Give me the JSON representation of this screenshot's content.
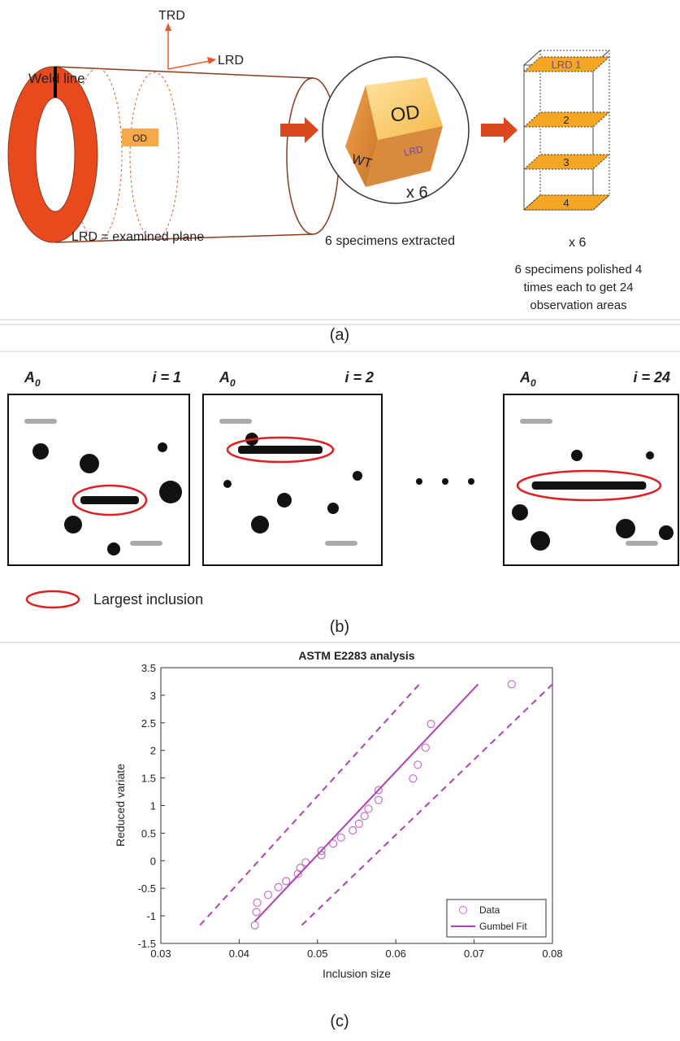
{
  "panel_a": {
    "axis_trd": "TRD",
    "axis_lrd": "LRD",
    "weld_line": "Weld line",
    "pipe_od": "OD",
    "caption_pipe": "LRD = examined plane",
    "cube_od": "OD",
    "cube_wt": "WT",
    "cube_lrd": "LRD",
    "cube_count": "x 6",
    "caption_specimens": "6 specimens extracted",
    "planes": [
      "LRD 1",
      "2",
      "3",
      "4"
    ],
    "stack_count": "x 6",
    "caption_polished": [
      "6 specimens polished 4",
      "times each to get 24",
      "observation areas"
    ],
    "label": "(a)"
  },
  "panel_b": {
    "images": [
      {
        "symbol": "A",
        "subscript": "0",
        "index": "i = 1"
      },
      {
        "symbol": "A",
        "subscript": "0",
        "index": "i = 2"
      },
      {
        "symbol": "A",
        "subscript": "0",
        "index": "i = 24"
      }
    ],
    "legend": "Largest inclusion",
    "label": "(b)"
  },
  "chart_data": {
    "type": "scatter",
    "title": "ASTM E2283 analysis",
    "x_label": "Inclusion size",
    "y_label": "Reduced variate",
    "xlim": [
      0.03,
      0.08
    ],
    "xticks": [
      0.03,
      0.04,
      0.05,
      0.06,
      0.07,
      0.08
    ],
    "ylim": [
      -1.5,
      3.5
    ],
    "yticks": [
      -1.5,
      -1,
      -0.5,
      0,
      0.5,
      1,
      1.5,
      2,
      2.5,
      3,
      3.5
    ],
    "legend_position": "lower right",
    "series": [
      {
        "name": "Data",
        "marker": "circle",
        "color": "#c56ec9",
        "x": [
          0.042,
          0.0422,
          0.0423,
          0.0437,
          0.045,
          0.046,
          0.0475,
          0.0478,
          0.0485,
          0.0505,
          0.0505,
          0.052,
          0.053,
          0.0545,
          0.0553,
          0.056,
          0.0565,
          0.0578,
          0.0578,
          0.0622,
          0.0628,
          0.0638,
          0.0645,
          0.0748
        ],
        "values": [
          -1.17,
          -0.93,
          -0.76,
          -0.62,
          -0.48,
          -0.37,
          -0.24,
          -0.13,
          -0.03,
          0.1,
          0.18,
          0.31,
          0.42,
          0.55,
          0.67,
          0.81,
          0.94,
          1.1,
          1.28,
          1.49,
          1.74,
          2.05,
          2.48,
          3.2
        ]
      },
      {
        "name": "Gumbel Fit",
        "marker": "line",
        "color": "#b03fb8",
        "x": [
          0.042,
          0.0705
        ],
        "values": [
          -1.1,
          3.2
        ]
      },
      {
        "marker": "dashed",
        "color": "#b03fb8",
        "x": [
          0.035,
          0.063
        ],
        "values": [
          -1.17,
          3.2
        ]
      },
      {
        "marker": "dashed",
        "color": "#b03fb8",
        "x": [
          0.048,
          0.08
        ],
        "values": [
          -1.17,
          3.2
        ]
      }
    ],
    "label": "(c)"
  }
}
